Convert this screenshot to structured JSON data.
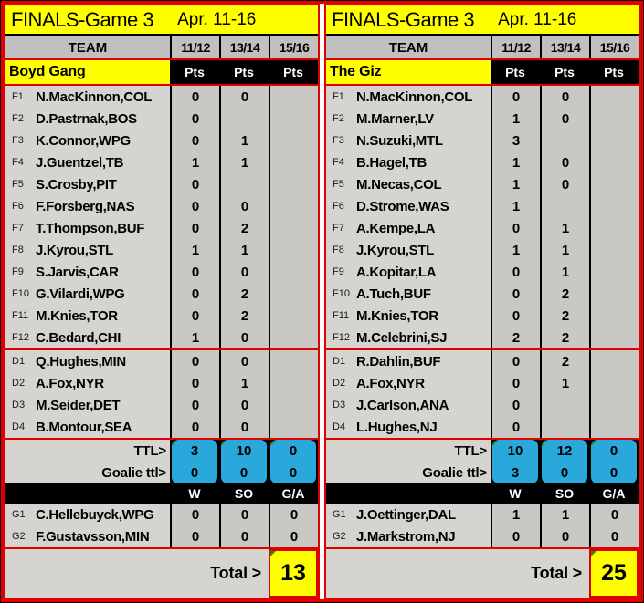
{
  "colors": {
    "frame_red": "#e00000",
    "title_yellow": "#ffff00",
    "header_gray": "#c0c0c0",
    "row_gray": "#d6d4d0",
    "cell_gray": "#c9c8c5",
    "ttl_cyan": "#29a8dc",
    "flag_green": "#3a7d23",
    "bar_black": "#000000"
  },
  "panels": [
    {
      "title": "FINALS-Game 3",
      "date_range": "Apr. 11-16",
      "team_header": "TEAM",
      "date_cols": [
        "11/12",
        "13/14",
        "15/16"
      ],
      "team_name": "Boyd Gang",
      "pts_labels": [
        "Pts",
        "Pts",
        "Pts"
      ],
      "forwards": [
        {
          "pos": "F1",
          "name": "N.MacKinnon,COL",
          "pts": [
            "0",
            "0",
            ""
          ]
        },
        {
          "pos": "F2",
          "name": "D.Pastrnak,BOS",
          "pts": [
            "0",
            "",
            ""
          ]
        },
        {
          "pos": "F3",
          "name": "K.Connor,WPG",
          "pts": [
            "0",
            "1",
            ""
          ]
        },
        {
          "pos": "F4",
          "name": "J.Guentzel,TB",
          "pts": [
            "1",
            "1",
            ""
          ]
        },
        {
          "pos": "F5",
          "name": "S.Crosby,PIT",
          "pts": [
            "0",
            "",
            ""
          ]
        },
        {
          "pos": "F6",
          "name": "F.Forsberg,NAS",
          "pts": [
            "0",
            "0",
            ""
          ]
        },
        {
          "pos": "F7",
          "name": "T.Thompson,BUF",
          "pts": [
            "0",
            "2",
            ""
          ]
        },
        {
          "pos": "F8",
          "name": "J.Kyrou,STL",
          "pts": [
            "1",
            "1",
            ""
          ]
        },
        {
          "pos": "F9",
          "name": "S.Jarvis,CAR",
          "pts": [
            "0",
            "0",
            ""
          ]
        },
        {
          "pos": "F10",
          "name": "G.Vilardi,WPG",
          "pts": [
            "0",
            "2",
            ""
          ]
        },
        {
          "pos": "F11",
          "name": "M.Knies,TOR",
          "pts": [
            "0",
            "2",
            ""
          ]
        },
        {
          "pos": "F12",
          "name": "C.Bedard,CHI",
          "pts": [
            "1",
            "0",
            ""
          ]
        }
      ],
      "defense": [
        {
          "pos": "D1",
          "name": "Q.Hughes,MIN",
          "pts": [
            "0",
            "0",
            ""
          ]
        },
        {
          "pos": "D2",
          "name": "A.Fox,NYR",
          "pts": [
            "0",
            "1",
            ""
          ]
        },
        {
          "pos": "D3",
          "name": "M.Seider,DET",
          "pts": [
            "0",
            "0",
            ""
          ]
        },
        {
          "pos": "D4",
          "name": "B.Montour,SEA",
          "pts": [
            "0",
            "0",
            ""
          ]
        }
      ],
      "ttl_label": "TTL>",
      "ttl_values": [
        "3",
        "10",
        "0"
      ],
      "goalie_ttl_label": "Goalie ttl>",
      "goalie_ttl_values": [
        "0",
        "0",
        "0"
      ],
      "goalie_header": [
        "W",
        "SO",
        "G/A"
      ],
      "goalies": [
        {
          "pos": "G1",
          "name": "C.Hellebuyck,WPG",
          "pts": [
            "0",
            "0",
            "0"
          ]
        },
        {
          "pos": "G2",
          "name": "F.Gustavsson,MIN",
          "pts": [
            "0",
            "0",
            "0"
          ]
        }
      ],
      "total_label": "Total >",
      "total_value": "13"
    },
    {
      "title": "FINALS-Game 3",
      "date_range": "Apr. 11-16",
      "team_header": "TEAM",
      "date_cols": [
        "11/12",
        "13/14",
        "15/16"
      ],
      "team_name": "The Giz",
      "pts_labels": [
        "Pts",
        "Pts",
        "Pts"
      ],
      "forwards": [
        {
          "pos": "F1",
          "name": "N.MacKinnon,COL",
          "pts": [
            "0",
            "0",
            ""
          ]
        },
        {
          "pos": "F2",
          "name": "M.Marner,LV",
          "pts": [
            "1",
            "0",
            ""
          ]
        },
        {
          "pos": "F3",
          "name": "N.Suzuki,MTL",
          "pts": [
            "3",
            "",
            ""
          ]
        },
        {
          "pos": "F4",
          "name": "B.Hagel,TB",
          "pts": [
            "1",
            "0",
            ""
          ]
        },
        {
          "pos": "F5",
          "name": "M.Necas,COL",
          "pts": [
            "1",
            "0",
            ""
          ]
        },
        {
          "pos": "F6",
          "name": "D.Strome,WAS",
          "pts": [
            "1",
            "",
            ""
          ]
        },
        {
          "pos": "F7",
          "name": "A.Kempe,LA",
          "pts": [
            "0",
            "1",
            ""
          ]
        },
        {
          "pos": "F8",
          "name": "J.Kyrou,STL",
          "pts": [
            "1",
            "1",
            ""
          ]
        },
        {
          "pos": "F9",
          "name": "A.Kopitar,LA",
          "pts": [
            "0",
            "1",
            ""
          ]
        },
        {
          "pos": "F10",
          "name": "A.Tuch,BUF",
          "pts": [
            "0",
            "2",
            ""
          ]
        },
        {
          "pos": "F11",
          "name": "M.Knies,TOR",
          "pts": [
            "0",
            "2",
            ""
          ]
        },
        {
          "pos": "F12",
          "name": "M.Celebrini,SJ",
          "pts": [
            "2",
            "2",
            ""
          ]
        }
      ],
      "defense": [
        {
          "pos": "D1",
          "name": "R.Dahlin,BUF",
          "pts": [
            "0",
            "2",
            ""
          ]
        },
        {
          "pos": "D2",
          "name": "A.Fox,NYR",
          "pts": [
            "0",
            "1",
            ""
          ]
        },
        {
          "pos": "D3",
          "name": "J.Carlson,ANA",
          "pts": [
            "0",
            "",
            ""
          ]
        },
        {
          "pos": "D4",
          "name": "L.Hughes,NJ",
          "pts": [
            "0",
            "",
            ""
          ]
        }
      ],
      "ttl_label": "TTL>",
      "ttl_values": [
        "10",
        "12",
        "0"
      ],
      "goalie_ttl_label": "Goalie ttl>",
      "goalie_ttl_values": [
        "3",
        "0",
        "0"
      ],
      "goalie_header": [
        "W",
        "SO",
        "G/A"
      ],
      "goalies": [
        {
          "pos": "G1",
          "name": "J.Oettinger,DAL",
          "pts": [
            "1",
            "1",
            "0"
          ]
        },
        {
          "pos": "G2",
          "name": "J.Markstrom,NJ",
          "pts": [
            "0",
            "0",
            "0"
          ]
        }
      ],
      "total_label": "Total >",
      "total_value": "25"
    }
  ]
}
